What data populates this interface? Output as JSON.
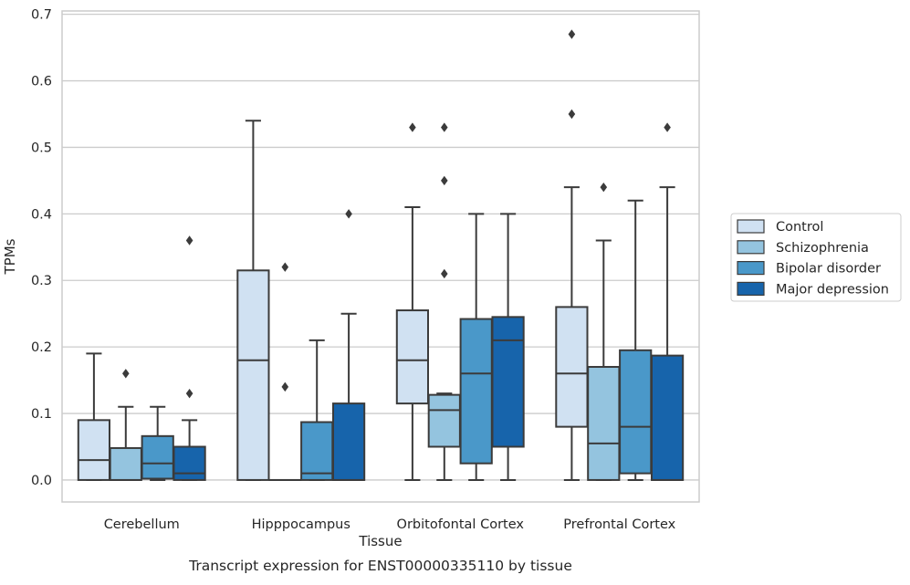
{
  "figure": {
    "caption": "Transcript expression for ENST00000335110 by tissue"
  },
  "colors": {
    "Control": "#d0e1f2",
    "Schizophrenia": "#94c4df",
    "Bipolar disorder": "#4a98c9",
    "Major depression": "#1764ab",
    "box_edge": "#3b3b3b",
    "grid": "#cccccc",
    "axes_frame": "#cccccc"
  },
  "chart_data": {
    "type": "box",
    "title": "",
    "xlabel": "Tissue",
    "ylabel": "TPMs",
    "ylim": [
      -0.033,
      0.705
    ],
    "yticks": [
      0.0,
      0.1,
      0.2,
      0.3,
      0.4,
      0.5,
      0.6,
      0.7
    ],
    "ytick_labels": [
      "0.0",
      "0.1",
      "0.2",
      "0.3",
      "0.4",
      "0.5",
      "0.6",
      "0.7"
    ],
    "grid": true,
    "legend_position": "right",
    "categories": [
      "Cerebellum",
      "Hipppocampus",
      "Orbitofontal Cortex",
      "Prefrontal Cortex"
    ],
    "series": [
      {
        "name": "Control",
        "boxes": [
          {
            "whislo": 0.0,
            "q1": 0.0,
            "med": 0.03,
            "q3": 0.09,
            "whishi": 0.19,
            "fliers": []
          },
          {
            "whislo": 0.0,
            "q1": 0.0,
            "med": 0.18,
            "q3": 0.315,
            "whishi": 0.54,
            "fliers": []
          },
          {
            "whislo": 0.0,
            "q1": 0.115,
            "med": 0.18,
            "q3": 0.255,
            "whishi": 0.41,
            "fliers": [
              0.53
            ]
          },
          {
            "whislo": 0.0,
            "q1": 0.08,
            "med": 0.16,
            "q3": 0.26,
            "whishi": 0.44,
            "fliers": [
              0.55,
              0.67
            ]
          }
        ]
      },
      {
        "name": "Schizophrenia",
        "boxes": [
          {
            "whislo": 0.0,
            "q1": 0.0,
            "med": 0.0,
            "q3": 0.048,
            "whishi": 0.11,
            "fliers": [
              0.16
            ]
          },
          {
            "whislo": 0.0,
            "q1": 0.0,
            "med": 0.0,
            "q3": 0.0,
            "whishi": 0.0,
            "fliers": [
              0.14,
              0.32
            ]
          },
          {
            "whislo": 0.0,
            "q1": 0.05,
            "med": 0.105,
            "q3": 0.128,
            "whishi": 0.13,
            "fliers": [
              0.31,
              0.45,
              0.53
            ]
          },
          {
            "whislo": 0.0,
            "q1": 0.0,
            "med": 0.055,
            "q3": 0.17,
            "whishi": 0.36,
            "fliers": [
              0.44
            ]
          }
        ]
      },
      {
        "name": "Bipolar disorder",
        "boxes": [
          {
            "whislo": 0.0,
            "q1": 0.002,
            "med": 0.025,
            "q3": 0.066,
            "whishi": 0.11,
            "fliers": []
          },
          {
            "whislo": 0.0,
            "q1": 0.0,
            "med": 0.01,
            "q3": 0.087,
            "whishi": 0.21,
            "fliers": []
          },
          {
            "whislo": 0.0,
            "q1": 0.025,
            "med": 0.16,
            "q3": 0.242,
            "whishi": 0.4,
            "fliers": []
          },
          {
            "whislo": 0.0,
            "q1": 0.01,
            "med": 0.08,
            "q3": 0.195,
            "whishi": 0.42,
            "fliers": []
          }
        ]
      },
      {
        "name": "Major depression",
        "boxes": [
          {
            "whislo": 0.0,
            "q1": 0.0,
            "med": 0.01,
            "q3": 0.05,
            "whishi": 0.09,
            "fliers": [
              0.13,
              0.36
            ]
          },
          {
            "whislo": 0.0,
            "q1": 0.0,
            "med": 0.0,
            "q3": 0.115,
            "whishi": 0.25,
            "fliers": [
              0.4
            ]
          },
          {
            "whislo": 0.0,
            "q1": 0.05,
            "med": 0.21,
            "q3": 0.245,
            "whishi": 0.4,
            "fliers": []
          },
          {
            "whislo": 0.0,
            "q1": 0.0,
            "med": 0.0,
            "q3": 0.187,
            "whishi": 0.44,
            "fliers": [
              0.53
            ]
          }
        ]
      }
    ]
  }
}
